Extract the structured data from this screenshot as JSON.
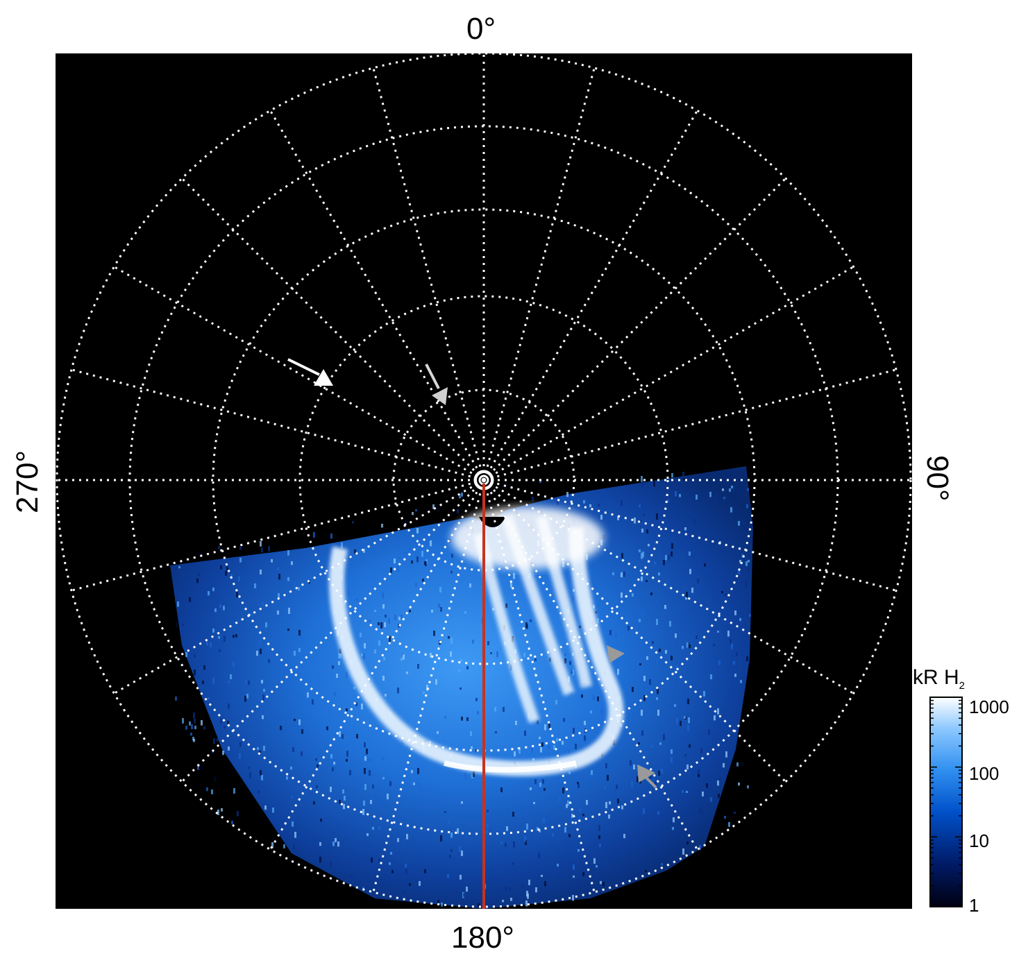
{
  "image": {
    "description_free": true,
    "panel_background": "#000000",
    "aurora_colormap": [
      "#000010",
      "#001a66",
      "#0050c8",
      "#2f8ff0",
      "#8cc8ff",
      "#ffffff"
    ],
    "meridian_line_color": "#c8321e"
  },
  "labels": {
    "top": "0°",
    "bottom": "180°",
    "left": "270°",
    "right": "90°"
  },
  "colorbar": {
    "title_main": "kR H",
    "title_sub": "2",
    "ticks": [
      "1000",
      "100",
      "10",
      "1"
    ]
  },
  "markers": {
    "white_arrow": "arrow-white",
    "gray_arrows": [
      "arrow-gray",
      "arrow-gray",
      "arrow-gray",
      "arrow-gray"
    ]
  }
}
